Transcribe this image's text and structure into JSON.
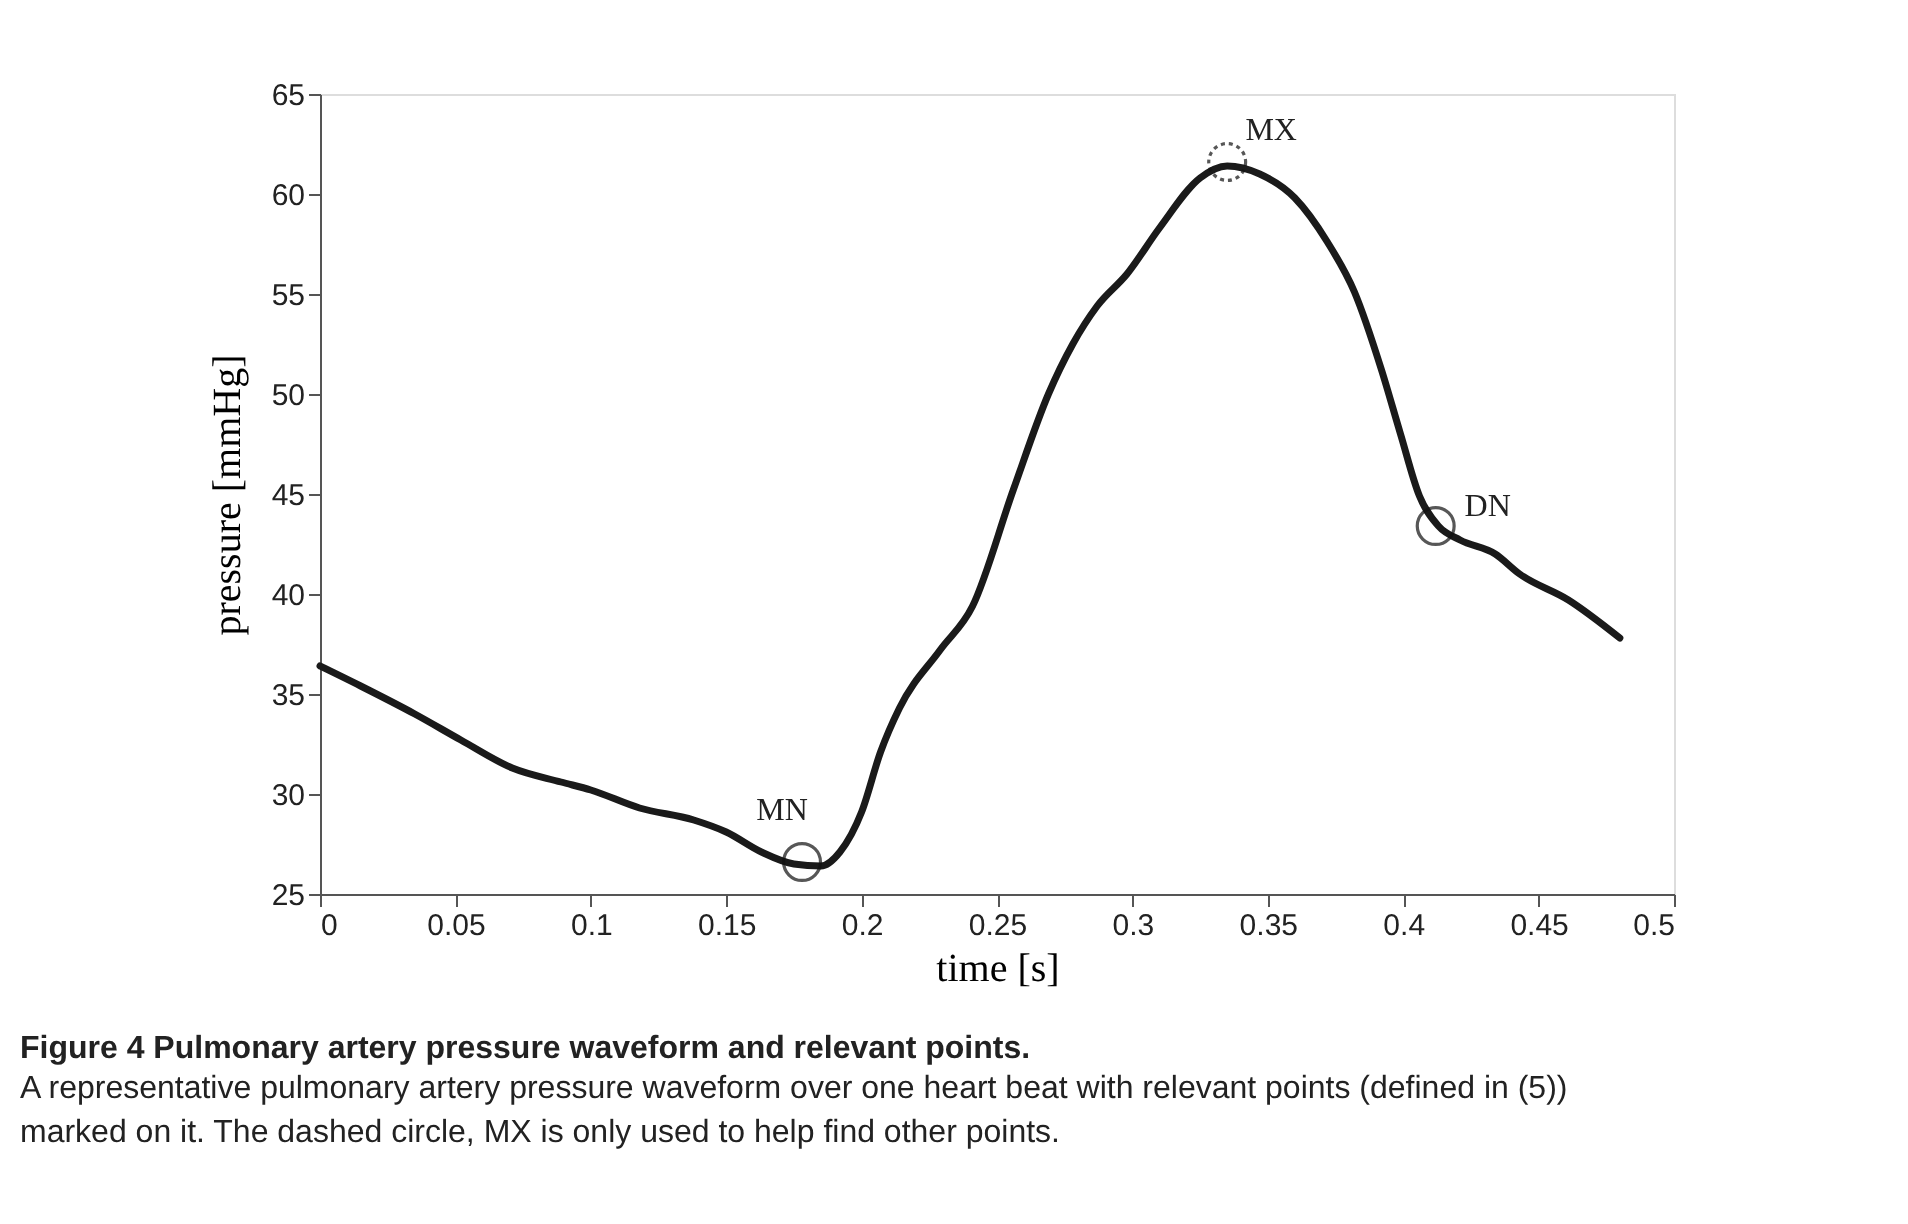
{
  "chart_data": {
    "type": "line",
    "title": "Figure 4 Pulmonary artery pressure waveform and relevant points.",
    "subtitle": "A representative pulmonary artery pressure waveform over one heart beat with relevant points (defined in (5)) marked on it. The dashed circle, MX is only used to help find other points.",
    "xlabel": "time [s]",
    "ylabel": "pressure [mmHg]",
    "xlim": [
      0,
      0.5
    ],
    "xticks": [
      0,
      0.05,
      0.1,
      0.15,
      0.2,
      0.25,
      0.3,
      0.35,
      0.4,
      0.45,
      0.5
    ],
    "ylim": [
      25,
      65
    ],
    "yticks": [
      25,
      30,
      35,
      40,
      45,
      50,
      55,
      60,
      65
    ],
    "grid": false,
    "marker": "none",
    "line_style": "solid",
    "series": [
      {
        "color": "#1a1a1a",
        "x": [
          0,
          0.015,
          0.035,
          0.052,
          0.071,
          0.089,
          0.1,
          0.118,
          0.138,
          0.15,
          0.163,
          0.175,
          0.185,
          0.192,
          0.2,
          0.207,
          0.214,
          0.229,
          0.241,
          0.256,
          0.269,
          0.278,
          0.287,
          0.298,
          0.31,
          0.325,
          0.335,
          0.347,
          0.36,
          0.372,
          0.382,
          0.392,
          0.399,
          0.406,
          0.413,
          0.421,
          0.434,
          0.443,
          0.461,
          0.48
        ],
        "values": [
          36.4,
          35.4,
          34.0,
          32.7,
          31.3,
          30.6,
          30.2,
          29.3,
          28.7,
          28.1,
          27.1,
          26.5,
          26.4,
          27.1,
          29.1,
          32.1,
          34.3,
          37.2,
          39.4,
          45.2,
          50.0,
          52.5,
          54.4,
          56.0,
          58.3,
          60.8,
          61.4,
          61.0,
          59.8,
          57.6,
          55.1,
          51.2,
          48.0,
          44.9,
          43.4,
          42.7,
          42.0,
          41.0,
          39.7,
          37.8
        ]
      }
    ],
    "annotations": [
      {
        "text": "MN",
        "x": 0.178,
        "y": 26.6
      },
      {
        "text": "MX",
        "x": 0.335,
        "y": 61.6
      },
      {
        "text": "DN",
        "x": 0.412,
        "y": 43.4
      }
    ]
  }
}
